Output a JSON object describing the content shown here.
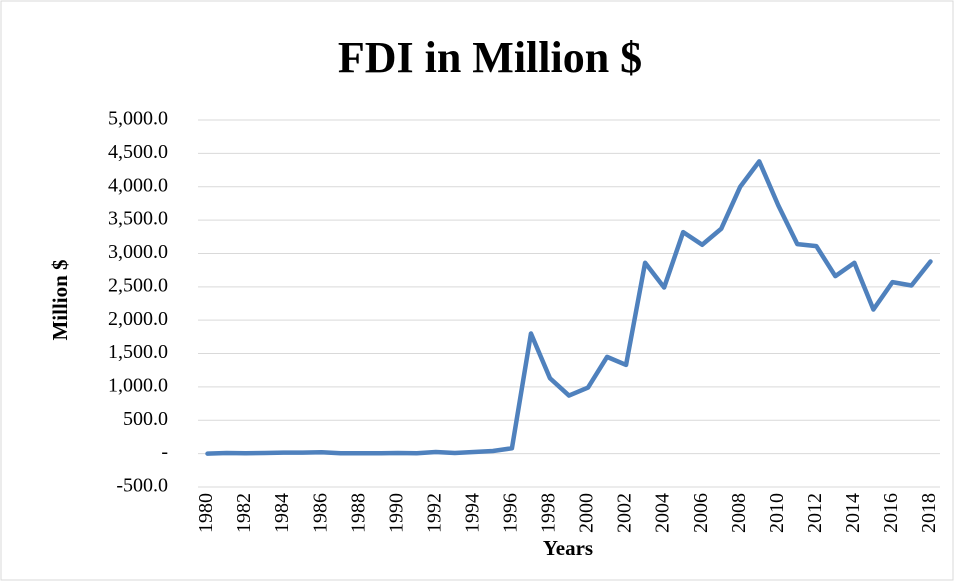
{
  "chart_data": {
    "type": "line",
    "title": "FDI in Million $",
    "x_label": "Years",
    "y_label": "Million $",
    "categories": [
      "1980",
      null,
      "1982",
      null,
      "1984",
      null,
      "1986",
      null,
      "1988",
      null,
      "1990",
      null,
      "1992",
      null,
      "1994",
      null,
      "1996",
      null,
      "1998",
      null,
      "2000",
      null,
      "2002",
      null,
      "2004",
      null,
      "2006",
      null,
      "2008",
      null,
      "2010",
      null,
      "2012",
      null,
      "2014",
      null,
      "2016",
      null,
      "2018"
    ],
    "series": [
      {
        "name": "FDI",
        "color": "#4f81bd",
        "values": [
          0,
          10,
          5,
          10,
          15,
          15,
          20,
          5,
          5,
          5,
          10,
          5,
          25,
          10,
          25,
          40,
          80,
          1800,
          1130,
          870,
          990,
          1450,
          1330,
          2860,
          2490,
          3320,
          3130,
          3370,
          4000,
          4380,
          3720,
          3140,
          3110,
          2660,
          2860,
          2160,
          2570,
          2520,
          2880
        ]
      }
    ],
    "ylim": [
      -500,
      5000
    ],
    "yticks": [
      {
        "value": -500,
        "label": "-500.0"
      },
      {
        "value": 0,
        "label": "-"
      },
      {
        "value": 500,
        "label": "500.0"
      },
      {
        "value": 1000,
        "label": "1,000.0"
      },
      {
        "value": 1500,
        "label": "1,500.0"
      },
      {
        "value": 2000,
        "label": "2,000.0"
      },
      {
        "value": 2500,
        "label": "2,500.0"
      },
      {
        "value": 3000,
        "label": "3,000.0"
      },
      {
        "value": 3500,
        "label": "3,500.0"
      },
      {
        "value": 4000,
        "label": "4,000.0"
      },
      {
        "value": 4500,
        "label": "4,500.0"
      },
      {
        "value": 5000,
        "label": "5,000.0"
      }
    ],
    "grid": true
  }
}
